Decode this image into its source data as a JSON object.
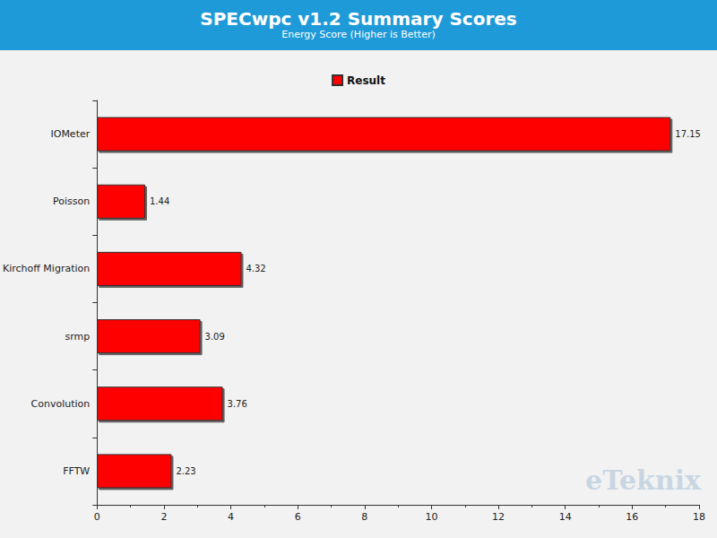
{
  "chart_data": {
    "type": "bar",
    "orientation": "horizontal",
    "title": "SPECwpc v1.2 Summary Scores",
    "subtitle": "Energy Score (Higher is Better)",
    "categories": [
      "IOMeter",
      "Poisson",
      "Kirchoff Migration",
      "srmp",
      "Convolution",
      "FFTW"
    ],
    "series": [
      {
        "name": "Result",
        "color": "#ff0000",
        "values": [
          17.15,
          1.44,
          4.32,
          3.09,
          3.76,
          2.23
        ]
      }
    ],
    "xlim": [
      0,
      18
    ],
    "xticks": [
      0,
      2,
      4,
      6,
      8,
      10,
      12,
      14,
      16,
      18
    ],
    "grid": false,
    "legend": "top",
    "data_labels": true,
    "annotations": [
      "eTeknix"
    ]
  }
}
